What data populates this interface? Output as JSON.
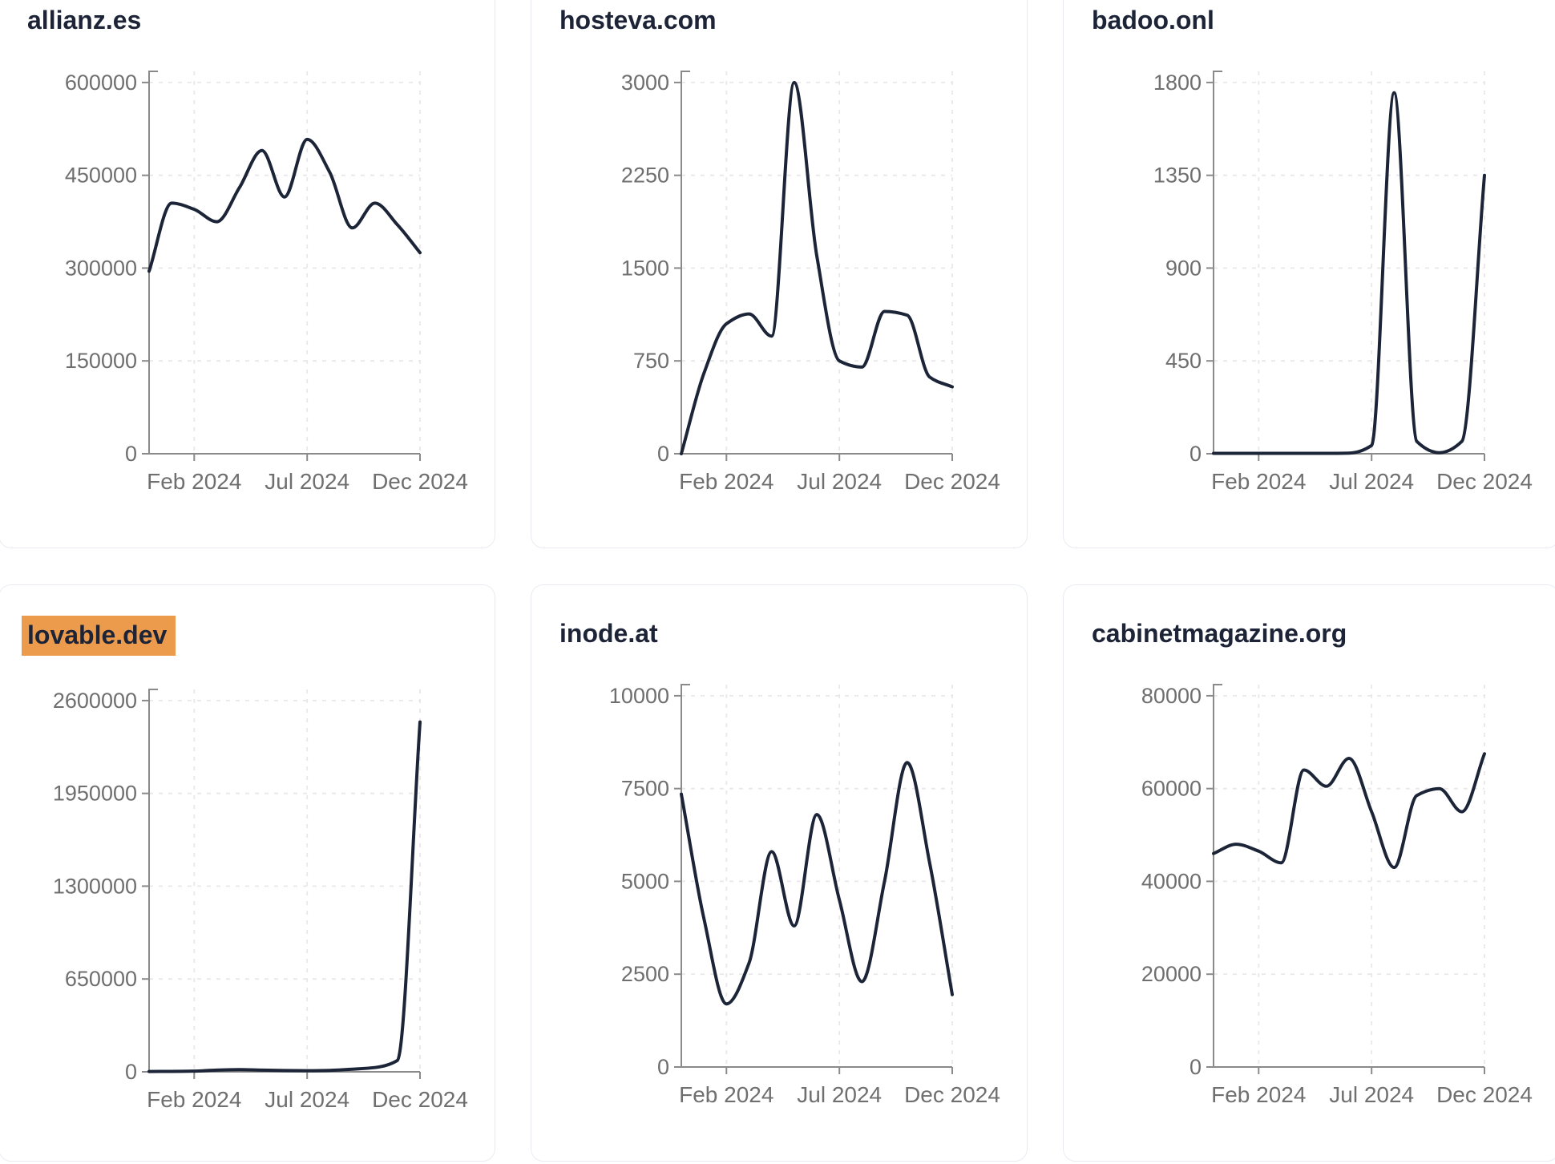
{
  "page": {
    "background": "#FFFFFF",
    "card_background": "#FFFFFF",
    "card_border_color": "#E8ECF2",
    "title_color": "#1D2437",
    "line_color": "#1C2438",
    "axis_color": "#8A8A8A",
    "tick_label_color": "#6F6F6F",
    "grid_color": "#E8E8E8",
    "highlight_color": "#EC9B4C"
  },
  "chart_data": [
    {
      "type": "line",
      "title": "allianz.es",
      "title_highlighted": false,
      "legend": "none",
      "grid": "dashed",
      "x_tick_labels": [
        "Feb 2024",
        "Jul 2024",
        "Dec 2024"
      ],
      "x_tick_indices": [
        2,
        7,
        12
      ],
      "y_ticks": [
        0,
        150000,
        300000,
        450000,
        600000
      ],
      "ylim": [
        0,
        618000
      ],
      "values": [
        295000,
        405000,
        395000,
        375000,
        430000,
        490000,
        415000,
        508000,
        455000,
        365000,
        405000,
        370000,
        325000
      ]
    },
    {
      "type": "line",
      "title": "hosteva.com",
      "title_highlighted": false,
      "legend": "none",
      "grid": "dashed",
      "x_tick_labels": [
        "Feb 2024",
        "Jul 2024",
        "Dec 2024"
      ],
      "x_tick_indices": [
        2,
        7,
        12
      ],
      "y_ticks": [
        0,
        750,
        1500,
        2250,
        3000
      ],
      "ylim": [
        0,
        3090
      ],
      "values": [
        0,
        650,
        1050,
        1130,
        950,
        3000,
        1600,
        750,
        700,
        1150,
        1120,
        620,
        540
      ]
    },
    {
      "type": "line",
      "title": "badoo.onl",
      "title_highlighted": false,
      "legend": "none",
      "grid": "dashed",
      "x_tick_labels": [
        "Feb 2024",
        "Jul 2024",
        "Dec 2024"
      ],
      "x_tick_indices": [
        2,
        7,
        12
      ],
      "y_ticks": [
        0,
        450,
        900,
        1350,
        1800
      ],
      "ylim": [
        0,
        1854
      ],
      "values": [
        2,
        2,
        2,
        2,
        2,
        2,
        3,
        40,
        1750,
        60,
        5,
        60,
        1350
      ]
    },
    {
      "type": "line",
      "title": "lovable.dev",
      "title_highlighted": true,
      "legend": "none",
      "grid": "dashed",
      "x_tick_labels": [
        "Feb 2024",
        "Jul 2024",
        "Dec 2024"
      ],
      "x_tick_indices": [
        2,
        7,
        12
      ],
      "y_ticks": [
        0,
        650000,
        1300000,
        1950000,
        2600000
      ],
      "ylim": [
        0,
        2678000
      ],
      "values": [
        2000,
        3000,
        5000,
        12000,
        15000,
        12000,
        9000,
        8000,
        10000,
        18000,
        30000,
        80000,
        2450000
      ]
    },
    {
      "type": "line",
      "title": "inode.at",
      "title_highlighted": false,
      "legend": "none",
      "grid": "dashed",
      "x_tick_labels": [
        "Feb 2024",
        "Jul 2024",
        "Dec 2024"
      ],
      "x_tick_indices": [
        2,
        7,
        12
      ],
      "y_ticks": [
        0,
        2500,
        5000,
        7500,
        10000
      ],
      "ylim": [
        0,
        10300
      ],
      "values": [
        7350,
        4000,
        1700,
        2800,
        5800,
        3800,
        6800,
        4500,
        2300,
        5000,
        8200,
        5500,
        1950
      ]
    },
    {
      "type": "line",
      "title": "cabinetmagazine.org",
      "title_highlighted": false,
      "legend": "none",
      "grid": "dashed",
      "x_tick_labels": [
        "Feb 2024",
        "Jul 2024",
        "Dec 2024"
      ],
      "x_tick_indices": [
        2,
        7,
        12
      ],
      "y_ticks": [
        0,
        20000,
        40000,
        60000,
        80000
      ],
      "ylim": [
        0,
        82400
      ],
      "values": [
        46000,
        48000,
        46500,
        44000,
        64000,
        60500,
        66500,
        55000,
        43000,
        58500,
        60000,
        55000,
        67500
      ]
    }
  ]
}
